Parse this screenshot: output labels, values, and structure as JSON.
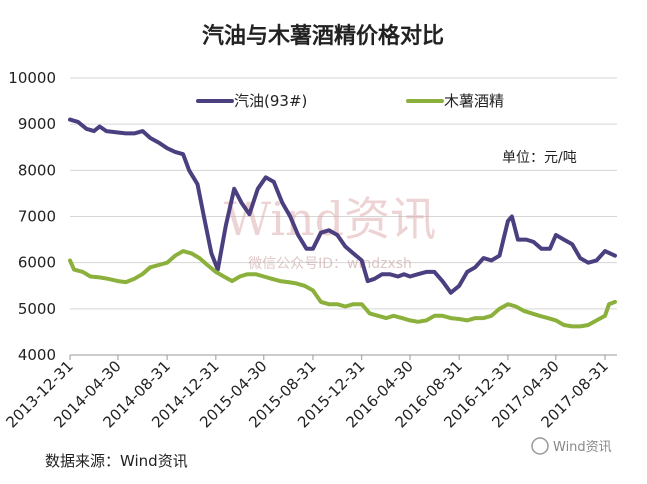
{
  "chart_data": {
    "type": "line",
    "title": "汽油与木薯酒精价格对比",
    "unit_label": "单位：元/吨",
    "xlabel": "",
    "ylabel": "",
    "ylim": [
      4000,
      10000
    ],
    "yticks": [
      4000,
      5000,
      6000,
      7000,
      8000,
      9000,
      10000
    ],
    "x_tick_labels": [
      "2013-12-31",
      "2014-04-30",
      "2014-08-31",
      "2014-12-31",
      "2015-04-30",
      "2015-08-31",
      "2015-12-31",
      "2016-04-30",
      "2016-08-31",
      "2016-12-31",
      "2017-04-30",
      "2017-08-31"
    ],
    "x_range": [
      "2013-12-31",
      "2017-09-30"
    ],
    "grid": "horizontal",
    "legend_position": "top",
    "series": [
      {
        "name": "汽油(93#)",
        "color": "#4b3f80",
        "points": [
          [
            "2013-12-31",
            9100
          ],
          [
            "2014-01-20",
            9050
          ],
          [
            "2014-02-10",
            8900
          ],
          [
            "2014-03-01",
            8850
          ],
          [
            "2014-03-15",
            8950
          ],
          [
            "2014-04-01",
            8850
          ],
          [
            "2014-04-30",
            8820
          ],
          [
            "2014-05-20",
            8800
          ],
          [
            "2014-06-10",
            8800
          ],
          [
            "2014-07-01",
            8850
          ],
          [
            "2014-07-20",
            8700
          ],
          [
            "2014-08-10",
            8600
          ],
          [
            "2014-08-31",
            8480
          ],
          [
            "2014-09-20",
            8400
          ],
          [
            "2014-10-10",
            8350
          ],
          [
            "2014-10-25",
            8000
          ],
          [
            "2014-11-15",
            7700
          ],
          [
            "2014-12-01",
            7000
          ],
          [
            "2014-12-20",
            6200
          ],
          [
            "2015-01-05",
            5850
          ],
          [
            "2015-01-25",
            6800
          ],
          [
            "2015-02-15",
            7600
          ],
          [
            "2015-03-05",
            7300
          ],
          [
            "2015-03-25",
            7050
          ],
          [
            "2015-04-15",
            7600
          ],
          [
            "2015-05-05",
            7850
          ],
          [
            "2015-05-25",
            7750
          ],
          [
            "2015-06-15",
            7300
          ],
          [
            "2015-07-05",
            7000
          ],
          [
            "2015-07-25",
            6600
          ],
          [
            "2015-08-15",
            6300
          ],
          [
            "2015-08-31",
            6300
          ],
          [
            "2015-09-20",
            6650
          ],
          [
            "2015-10-10",
            6700
          ],
          [
            "2015-10-31",
            6600
          ],
          [
            "2015-11-20",
            6350
          ],
          [
            "2015-12-10",
            6200
          ],
          [
            "2015-12-31",
            6050
          ],
          [
            "2016-01-15",
            5600
          ],
          [
            "2016-02-01",
            5650
          ],
          [
            "2016-02-20",
            5750
          ],
          [
            "2016-03-10",
            5750
          ],
          [
            "2016-03-31",
            5700
          ],
          [
            "2016-04-15",
            5750
          ],
          [
            "2016-04-30",
            5700
          ],
          [
            "2016-05-20",
            5750
          ],
          [
            "2016-06-10",
            5800
          ],
          [
            "2016-06-30",
            5800
          ],
          [
            "2016-07-20",
            5600
          ],
          [
            "2016-08-10",
            5350
          ],
          [
            "2016-08-31",
            5500
          ],
          [
            "2016-09-20",
            5800
          ],
          [
            "2016-10-10",
            5900
          ],
          [
            "2016-10-31",
            6100
          ],
          [
            "2016-11-20",
            6050
          ],
          [
            "2016-12-10",
            6150
          ],
          [
            "2016-12-31",
            6900
          ],
          [
            "2017-01-10",
            7000
          ],
          [
            "2017-01-25",
            6500
          ],
          [
            "2017-02-15",
            6500
          ],
          [
            "2017-03-05",
            6450
          ],
          [
            "2017-03-25",
            6300
          ],
          [
            "2017-04-15",
            6300
          ],
          [
            "2017-04-30",
            6600
          ],
          [
            "2017-05-20",
            6500
          ],
          [
            "2017-06-10",
            6400
          ],
          [
            "2017-06-30",
            6100
          ],
          [
            "2017-07-20",
            6000
          ],
          [
            "2017-08-10",
            6050
          ],
          [
            "2017-08-31",
            6250
          ],
          [
            "2017-09-25",
            6150
          ]
        ]
      },
      {
        "name": "木薯酒精",
        "color": "#8bb03c",
        "points": [
          [
            "2013-12-31",
            6050
          ],
          [
            "2014-01-10",
            5850
          ],
          [
            "2014-02-01",
            5800
          ],
          [
            "2014-02-20",
            5700
          ],
          [
            "2014-03-15",
            5680
          ],
          [
            "2014-04-05",
            5650
          ],
          [
            "2014-04-30",
            5600
          ],
          [
            "2014-05-20",
            5580
          ],
          [
            "2014-06-10",
            5650
          ],
          [
            "2014-06-30",
            5750
          ],
          [
            "2014-07-20",
            5900
          ],
          [
            "2014-08-10",
            5950
          ],
          [
            "2014-08-31",
            6000
          ],
          [
            "2014-09-20",
            6150
          ],
          [
            "2014-10-10",
            6250
          ],
          [
            "2014-10-31",
            6200
          ],
          [
            "2014-11-20",
            6100
          ],
          [
            "2014-12-10",
            5950
          ],
          [
            "2014-12-31",
            5800
          ],
          [
            "2015-01-20",
            5700
          ],
          [
            "2015-02-10",
            5600
          ],
          [
            "2015-03-01",
            5700
          ],
          [
            "2015-03-20",
            5750
          ],
          [
            "2015-04-10",
            5750
          ],
          [
            "2015-04-30",
            5700
          ],
          [
            "2015-05-20",
            5650
          ],
          [
            "2015-06-10",
            5600
          ],
          [
            "2015-06-30",
            5580
          ],
          [
            "2015-07-20",
            5550
          ],
          [
            "2015-08-10",
            5500
          ],
          [
            "2015-08-31",
            5400
          ],
          [
            "2015-09-20",
            5150
          ],
          [
            "2015-10-10",
            5100
          ],
          [
            "2015-10-31",
            5100
          ],
          [
            "2015-11-20",
            5050
          ],
          [
            "2015-12-10",
            5100
          ],
          [
            "2015-12-31",
            5100
          ],
          [
            "2016-01-20",
            4900
          ],
          [
            "2016-02-10",
            4850
          ],
          [
            "2016-03-01",
            4800
          ],
          [
            "2016-03-20",
            4850
          ],
          [
            "2016-04-10",
            4800
          ],
          [
            "2016-04-30",
            4750
          ],
          [
            "2016-05-20",
            4720
          ],
          [
            "2016-06-10",
            4750
          ],
          [
            "2016-06-30",
            4850
          ],
          [
            "2016-07-20",
            4850
          ],
          [
            "2016-08-10",
            4800
          ],
          [
            "2016-08-31",
            4780
          ],
          [
            "2016-09-20",
            4750
          ],
          [
            "2016-10-10",
            4800
          ],
          [
            "2016-10-31",
            4800
          ],
          [
            "2016-11-20",
            4850
          ],
          [
            "2016-12-10",
            5000
          ],
          [
            "2016-12-31",
            5100
          ],
          [
            "2017-01-20",
            5050
          ],
          [
            "2017-02-10",
            4950
          ],
          [
            "2017-03-01",
            4900
          ],
          [
            "2017-03-20",
            4850
          ],
          [
            "2017-04-10",
            4800
          ],
          [
            "2017-04-30",
            4750
          ],
          [
            "2017-05-20",
            4650
          ],
          [
            "2017-06-10",
            4620
          ],
          [
            "2017-06-30",
            4620
          ],
          [
            "2017-07-20",
            4650
          ],
          [
            "2017-08-10",
            4750
          ],
          [
            "2017-08-31",
            4850
          ],
          [
            "2017-09-10",
            5100
          ],
          [
            "2017-09-25",
            5150
          ]
        ]
      }
    ]
  },
  "watermark": {
    "main": "Wind资讯",
    "sub": "微信公众号ID：windzxsh"
  },
  "source_text": "数据来源：Wind资讯",
  "brand_text": "Wind资讯"
}
